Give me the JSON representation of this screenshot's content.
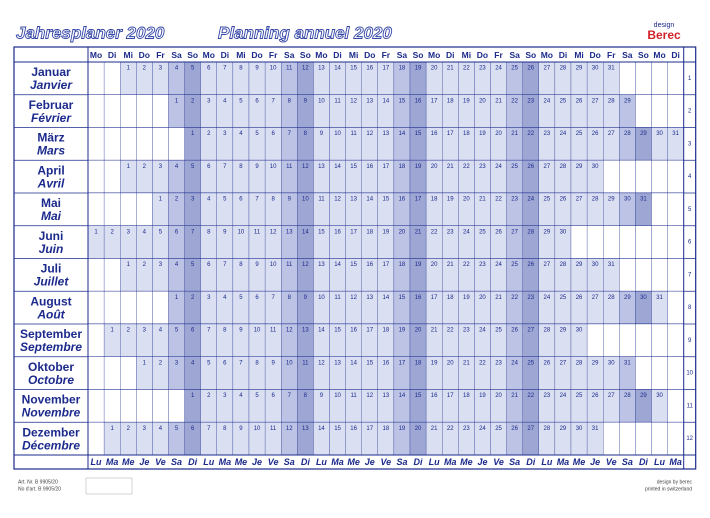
{
  "header": {
    "title_de": "Jahresplaner 2020",
    "title_fr": "Planning annuel 2020",
    "brand_small": "design",
    "brand": "Berec"
  },
  "weekdays_top": [
    "Mo",
    "Di",
    "Mi",
    "Do",
    "Fr",
    "Sa",
    "So",
    "Mo",
    "Di",
    "Mi",
    "Do",
    "Fr",
    "Sa",
    "So",
    "Mo",
    "Di",
    "Mi",
    "Do",
    "Fr",
    "Sa",
    "So",
    "Mo",
    "Di",
    "Mi",
    "Do",
    "Fr",
    "Sa",
    "So",
    "Mo",
    "Di",
    "Mi",
    "Do",
    "Fr",
    "Sa",
    "So",
    "Mo",
    "Di"
  ],
  "weekdays_bottom": [
    "Lu",
    "Ma",
    "Me",
    "Je",
    "Ve",
    "Sa",
    "Di",
    "Lu",
    "Ma",
    "Me",
    "Je",
    "Ve",
    "Sa",
    "Di",
    "Lu",
    "Ma",
    "Me",
    "Je",
    "Ve",
    "Sa",
    "Di",
    "Lu",
    "Ma",
    "Me",
    "Je",
    "Ve",
    "Sa",
    "Di",
    "Lu",
    "Ma",
    "Me",
    "Je",
    "Ve",
    "Sa",
    "Di",
    "Lu",
    "Ma"
  ],
  "months": [
    {
      "de": "Januar",
      "fr": "Janvier",
      "number": 1,
      "days": [
        null,
        null,
        1,
        2,
        3,
        4,
        5,
        6,
        7,
        8,
        9,
        10,
        11,
        12,
        13,
        14,
        15,
        16,
        17,
        18,
        19,
        20,
        21,
        22,
        23,
        24,
        25,
        26,
        27,
        28,
        29,
        30,
        31,
        null,
        null,
        null,
        null
      ]
    },
    {
      "de": "Februar",
      "fr": "Février",
      "number": 2,
      "days": [
        null,
        null,
        null,
        null,
        null,
        1,
        2,
        3,
        4,
        5,
        6,
        7,
        8,
        9,
        10,
        11,
        12,
        13,
        14,
        15,
        16,
        17,
        18,
        19,
        20,
        21,
        22,
        23,
        24,
        25,
        26,
        27,
        28,
        29,
        null,
        null,
        null
      ]
    },
    {
      "de": "März",
      "fr": "Mars",
      "number": 3,
      "days": [
        null,
        null,
        null,
        null,
        null,
        null,
        1,
        2,
        3,
        4,
        5,
        6,
        7,
        8,
        9,
        10,
        11,
        12,
        13,
        14,
        15,
        16,
        17,
        18,
        19,
        20,
        21,
        22,
        23,
        24,
        25,
        26,
        27,
        28,
        29,
        30,
        31
      ]
    },
    {
      "de": "April",
      "fr": "Avril",
      "number": 4,
      "days": [
        null,
        null,
        1,
        2,
        3,
        4,
        5,
        6,
        7,
        8,
        9,
        10,
        11,
        12,
        13,
        14,
        15,
        16,
        17,
        18,
        19,
        20,
        21,
        22,
        23,
        24,
        25,
        26,
        27,
        28,
        29,
        30,
        null,
        null,
        null,
        null,
        null
      ]
    },
    {
      "de": "Mai",
      "fr": "Mai",
      "number": 5,
      "days": [
        null,
        null,
        null,
        null,
        1,
        2,
        3,
        4,
        5,
        6,
        7,
        8,
        9,
        10,
        11,
        12,
        13,
        14,
        15,
        16,
        17,
        18,
        19,
        20,
        21,
        22,
        23,
        24,
        25,
        26,
        27,
        28,
        29,
        30,
        31,
        null,
        null
      ]
    },
    {
      "de": "Juni",
      "fr": "Juin",
      "number": 6,
      "days": [
        1,
        2,
        3,
        4,
        5,
        6,
        7,
        8,
        9,
        10,
        11,
        12,
        13,
        14,
        15,
        16,
        17,
        18,
        19,
        20,
        21,
        22,
        23,
        24,
        25,
        26,
        27,
        28,
        29,
        30,
        null,
        null,
        null,
        null,
        null,
        null,
        null
      ]
    },
    {
      "de": "Juli",
      "fr": "Juillet",
      "number": 7,
      "days": [
        null,
        null,
        1,
        2,
        3,
        4,
        5,
        6,
        7,
        8,
        9,
        10,
        11,
        12,
        13,
        14,
        15,
        16,
        17,
        18,
        19,
        20,
        21,
        22,
        23,
        24,
        25,
        26,
        27,
        28,
        29,
        30,
        31,
        null,
        null,
        null,
        null
      ]
    },
    {
      "de": "August",
      "fr": "Août",
      "number": 8,
      "days": [
        null,
        null,
        null,
        null,
        null,
        1,
        2,
        3,
        4,
        5,
        6,
        7,
        8,
        9,
        10,
        11,
        12,
        13,
        14,
        15,
        16,
        17,
        18,
        19,
        20,
        21,
        22,
        23,
        24,
        25,
        26,
        27,
        28,
        29,
        30,
        31,
        null
      ]
    },
    {
      "de": "September",
      "fr": "Septembre",
      "number": 9,
      "days": [
        null,
        1,
        2,
        3,
        4,
        5,
        6,
        7,
        8,
        9,
        10,
        11,
        12,
        13,
        14,
        15,
        16,
        17,
        18,
        19,
        20,
        21,
        22,
        23,
        24,
        25,
        26,
        27,
        28,
        29,
        30,
        null,
        null,
        null,
        null,
        null,
        null
      ]
    },
    {
      "de": "Oktober",
      "fr": "Octobre",
      "number": 10,
      "days": [
        null,
        null,
        null,
        1,
        2,
        3,
        4,
        5,
        6,
        7,
        8,
        9,
        10,
        11,
        12,
        13,
        14,
        15,
        16,
        17,
        18,
        19,
        20,
        21,
        22,
        23,
        24,
        25,
        26,
        27,
        28,
        29,
        30,
        31,
        null,
        null,
        null
      ]
    },
    {
      "de": "November",
      "fr": "Novembre",
      "number": 11,
      "days": [
        null,
        null,
        null,
        null,
        null,
        null,
        1,
        2,
        3,
        4,
        5,
        6,
        7,
        8,
        9,
        10,
        11,
        12,
        13,
        14,
        15,
        16,
        17,
        18,
        19,
        20,
        21,
        22,
        23,
        24,
        25,
        26,
        27,
        28,
        29,
        30,
        null
      ]
    },
    {
      "de": "Dezember",
      "fr": "Décembre",
      "number": 12,
      "days": [
        null,
        1,
        2,
        3,
        4,
        5,
        6,
        7,
        8,
        9,
        10,
        11,
        12,
        13,
        14,
        15,
        16,
        17,
        18,
        19,
        20,
        21,
        22,
        23,
        24,
        25,
        26,
        27,
        28,
        29,
        30,
        31,
        null,
        null,
        null,
        null,
        null
      ]
    }
  ],
  "footer": {
    "article_de": "Art. Nr. B 9905/20",
    "article_fr": "No d'art. B 9905/20",
    "design": "design by berec",
    "printed": "printed in switzerland"
  }
}
